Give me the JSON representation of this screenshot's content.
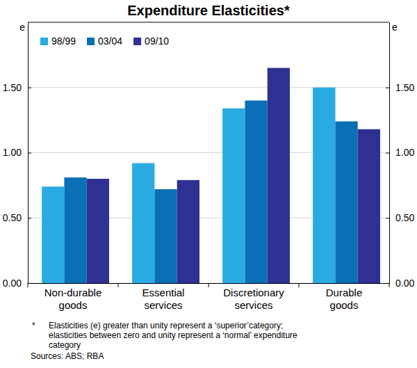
{
  "chart_data": {
    "type": "bar",
    "title": "Expenditure Elasticities*",
    "ylabel": "e",
    "categories": [
      "Non-durable goods",
      "Essential services",
      "Discretionary services",
      "Durable goods"
    ],
    "series": [
      {
        "name": "98/99",
        "color": "#29abe2",
        "values": [
          0.74,
          0.92,
          1.34,
          1.5
        ]
      },
      {
        "name": "03/04",
        "color": "#0a6fb5",
        "values": [
          0.81,
          0.72,
          1.4,
          1.24
        ]
      },
      {
        "name": "09/10",
        "color": "#2e3192",
        "values": [
          0.8,
          0.79,
          1.65,
          1.18
        ]
      }
    ],
    "ylim": [
      0,
      2
    ],
    "yticks": [
      {
        "value": 0,
        "label": "0.00"
      },
      {
        "value": 0.5,
        "label": "0.50"
      },
      {
        "value": 1,
        "label": "1.00"
      },
      {
        "value": 1.5,
        "label": "1.50"
      }
    ],
    "grid": true,
    "legend": "upper left",
    "footnote_marker": "*",
    "footnote": [
      "Elasticities (e) greater than unity represent a ‘superior’category;",
      "elasticities between zero and unity represent a ‘normal’ expenditure",
      "category"
    ],
    "source": "Sources: ABS; RBA"
  }
}
